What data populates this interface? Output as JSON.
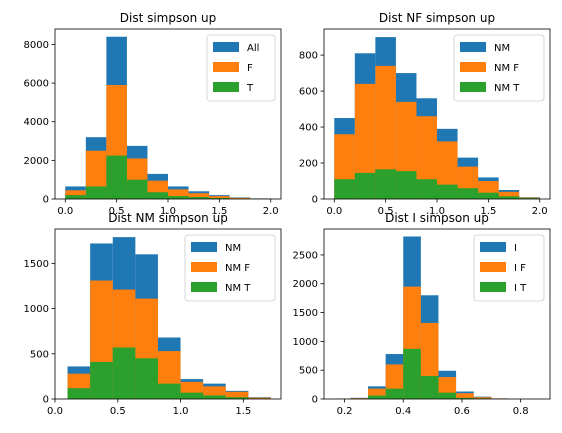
{
  "colors": {
    "blue": "#1f77b4",
    "orange": "#ff7f0e",
    "green": "#2ca02c"
  },
  "chart_data": [
    {
      "type": "histogram",
      "title": "Dist simpson up",
      "legend_position": "upper-right",
      "grid": false,
      "xlim": [
        -0.1,
        2.1
      ],
      "ylim": [
        0,
        8800
      ],
      "xticks": [
        0.0,
        0.5,
        1.0,
        1.5,
        2.0
      ],
      "xtick_labels": [
        "0.0",
        "0.5",
        "1.0",
        "1.5",
        "2.0"
      ],
      "yticks": [
        0,
        2000,
        4000,
        6000,
        8000
      ],
      "ytick_labels": [
        "0",
        "2000",
        "4000",
        "6000",
        "8000"
      ],
      "bin_edges": [
        0.0,
        0.2,
        0.4,
        0.6,
        0.8,
        1.0,
        1.2,
        1.4,
        1.6,
        1.8,
        2.0
      ],
      "series": [
        {
          "name": "All",
          "color_key": "blue",
          "values": [
            650,
            3200,
            8400,
            2750,
            1300,
            650,
            400,
            200,
            80,
            30
          ]
        },
        {
          "name": "F",
          "color_key": "orange",
          "values": [
            450,
            2500,
            5900,
            2100,
            950,
            500,
            300,
            150,
            60,
            20
          ]
        },
        {
          "name": "T",
          "color_key": "green",
          "values": [
            200,
            650,
            2250,
            1000,
            350,
            150,
            100,
            50,
            20,
            10
          ]
        }
      ]
    },
    {
      "type": "histogram",
      "title": "Dist NF simpson up",
      "legend_position": "upper-right",
      "grid": false,
      "xlim": [
        -0.1,
        2.1
      ],
      "ylim": [
        0,
        945
      ],
      "xticks": [
        0.0,
        0.5,
        1.0,
        1.5,
        2.0
      ],
      "xtick_labels": [
        "0.0",
        "0.5",
        "1.0",
        "1.5",
        "2.0"
      ],
      "yticks": [
        0,
        200,
        400,
        600,
        800
      ],
      "ytick_labels": [
        "0",
        "200",
        "400",
        "600",
        "800"
      ],
      "bin_edges": [
        0.0,
        0.2,
        0.4,
        0.6,
        0.8,
        1.0,
        1.2,
        1.4,
        1.6,
        1.8,
        2.0
      ],
      "series": [
        {
          "name": "NM",
          "color_key": "blue",
          "values": [
            450,
            810,
            900,
            700,
            560,
            390,
            230,
            120,
            50,
            10
          ]
        },
        {
          "name": "NM F",
          "color_key": "orange",
          "values": [
            360,
            640,
            740,
            540,
            460,
            320,
            180,
            100,
            40,
            8
          ]
        },
        {
          "name": "NM T",
          "color_key": "green",
          "values": [
            110,
            145,
            165,
            155,
            110,
            80,
            60,
            35,
            15,
            5
          ]
        }
      ]
    },
    {
      "type": "histogram",
      "title": "Dist NM simpson up",
      "legend_position": "upper-right",
      "grid": false,
      "xlim": [
        0.0,
        1.8
      ],
      "ylim": [
        0,
        1880
      ],
      "xticks": [
        0.0,
        0.5,
        1.0,
        1.5
      ],
      "xtick_labels": [
        "0.0",
        "0.5",
        "1.0",
        "1.5"
      ],
      "yticks": [
        0,
        500,
        1000,
        1500
      ],
      "ytick_labels": [
        "0",
        "500",
        "1000",
        "1500"
      ],
      "bin_edges": [
        0.1,
        0.28,
        0.46,
        0.64,
        0.82,
        1.0,
        1.18,
        1.36,
        1.54,
        1.72
      ],
      "series": [
        {
          "name": "NM",
          "color_key": "blue",
          "values": [
            360,
            1720,
            1790,
            1600,
            680,
            220,
            170,
            90,
            20
          ]
        },
        {
          "name": "NM F",
          "color_key": "orange",
          "values": [
            280,
            1310,
            1210,
            1110,
            530,
            190,
            140,
            80,
            15
          ]
        },
        {
          "name": "NM T",
          "color_key": "green",
          "values": [
            120,
            410,
            570,
            450,
            170,
            70,
            40,
            20,
            5
          ]
        }
      ]
    },
    {
      "type": "histogram",
      "title": "Dist I simpson up",
      "legend_position": "upper-right",
      "grid": false,
      "xlim": [
        0.13,
        0.9
      ],
      "ylim": [
        0,
        2950
      ],
      "xticks": [
        0.2,
        0.4,
        0.6,
        0.8
      ],
      "xtick_labels": [
        "0.2",
        "0.4",
        "0.6",
        "0.8"
      ],
      "yticks": [
        0,
        500,
        1000,
        1500,
        2000,
        2500
      ],
      "ytick_labels": [
        "0",
        "500",
        "1000",
        "1500",
        "2000",
        "2500"
      ],
      "bin_edges": [
        0.16,
        0.22,
        0.28,
        0.34,
        0.4,
        0.46,
        0.52,
        0.58,
        0.64,
        0.7,
        0.76,
        0.82,
        0.88
      ],
      "series": [
        {
          "name": "I",
          "color_key": "blue",
          "values": [
            5,
            20,
            220,
            780,
            2820,
            1800,
            490,
            130,
            40,
            10,
            0,
            0
          ]
        },
        {
          "name": "I F",
          "color_key": "orange",
          "values": [
            5,
            15,
            180,
            600,
            1950,
            1320,
            380,
            100,
            30,
            10,
            0,
            0
          ]
        },
        {
          "name": "I T",
          "color_key": "green",
          "values": [
            0,
            5,
            60,
            180,
            870,
            400,
            110,
            20,
            10,
            0,
            0,
            0
          ]
        }
      ]
    }
  ]
}
